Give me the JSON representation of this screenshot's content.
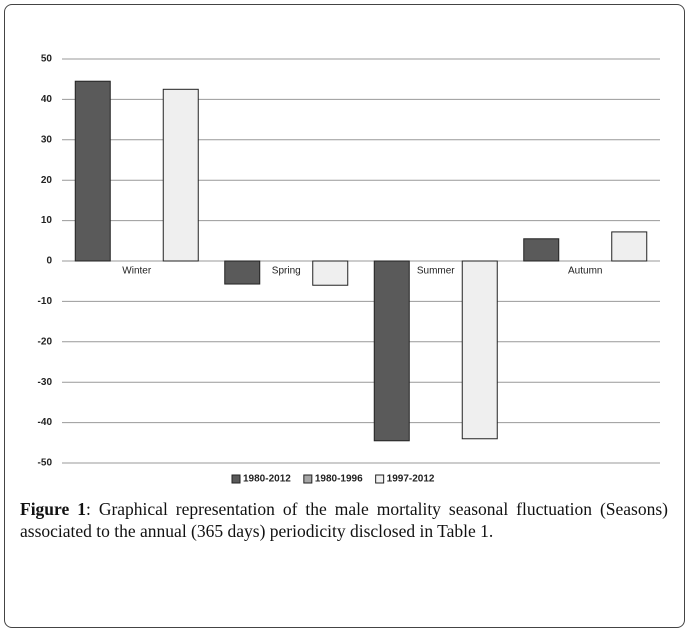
{
  "chart_data": {
    "type": "bar",
    "categories": [
      "Winter",
      "Spring",
      "Summer",
      "Autumn"
    ],
    "series": [
      {
        "name": "1980-2012",
        "color": "#5a5a5a",
        "values": [
          44.5,
          -5.7,
          -44.5,
          5.5
        ]
      },
      {
        "name": "1980-1996",
        "color": "#a6a6a6",
        "values": [
          null,
          null,
          null,
          null
        ]
      },
      {
        "name": "1997-2012",
        "color": "#efefef",
        "values": [
          42.5,
          -6,
          -44,
          7.2
        ]
      }
    ],
    "ylim": [
      -50,
      50
    ],
    "yticks": [
      -50,
      -40,
      -30,
      -20,
      -10,
      0,
      10,
      20,
      30,
      40,
      50
    ],
    "grid": true,
    "legend": "bottom"
  },
  "caption": {
    "label": "Figure 1",
    "text": ": Graphical representation of the male mortality seasonal fluctuation (Seasons) associated to the annual (365 days) periodicity disclosed in Table 1."
  }
}
